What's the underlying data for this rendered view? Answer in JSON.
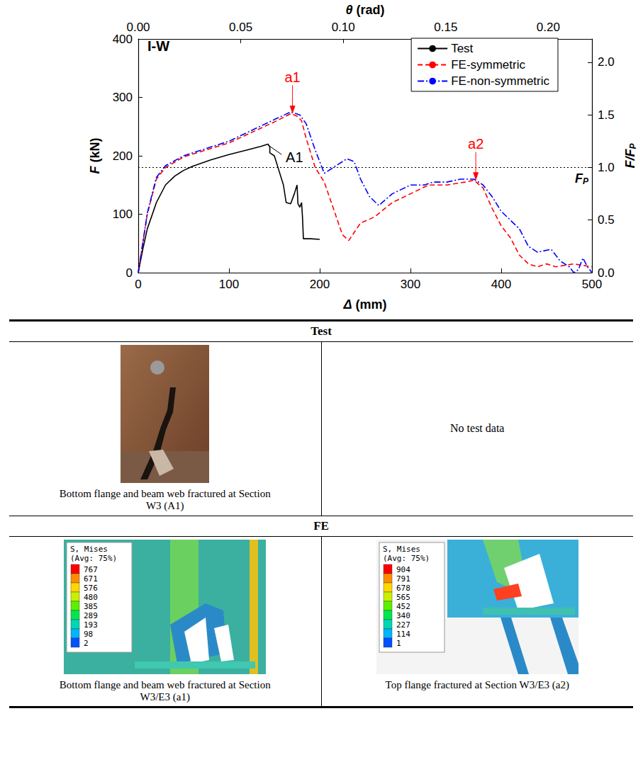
{
  "chart_data": {
    "type": "line",
    "panel_label": "I-W",
    "x_label": "Δ (mm)",
    "y_label": "F (kN)",
    "x2_label": "θ (rad)",
    "y2_label": {
      "text": "F/F",
      "subscript": "P"
    },
    "xlim": [
      0,
      500
    ],
    "xticks": [
      0,
      100,
      200,
      300,
      400,
      500
    ],
    "ylim": [
      0,
      400
    ],
    "yticks": [
      0,
      100,
      200,
      300,
      400
    ],
    "x2lim": [
      0,
      0.2213
    ],
    "x2ticks": [
      {
        "value": 0,
        "label": "0.00"
      },
      0.05,
      {
        "value": 0.1,
        "label": "0.10"
      },
      0.15,
      {
        "value": 0.2,
        "label": "0.20"
      }
    ],
    "y2lim": [
      0,
      2.222
    ],
    "y2ticks": [
      {
        "value": 0,
        "label": "0.0"
      },
      0.5,
      {
        "value": 1,
        "label": "1.0"
      },
      1.5,
      {
        "value": 2,
        "label": "2.0"
      }
    ],
    "grid": false,
    "legend": "upper right",
    "reference_line": {
      "y": 180,
      "label": "F",
      "label_subscript": "P"
    },
    "annotations": [
      {
        "text": "A1",
        "x": 143,
        "y": 218,
        "color": "#000000",
        "marker": "line"
      },
      {
        "text": "a1",
        "x": 170,
        "y": 272,
        "color": "#ff0000",
        "marker": "arrow"
      },
      {
        "text": "a2",
        "x": 372,
        "y": 158,
        "color": "#ff0000",
        "marker": "arrow"
      }
    ],
    "series": [
      {
        "name": "Test",
        "color": "#000000",
        "line_style": "solid",
        "x": [
          0,
          5,
          10,
          20,
          30,
          40,
          50,
          60,
          80,
          100,
          120,
          135,
          143,
          145,
          145,
          150,
          155,
          160,
          163,
          168,
          172,
          175,
          176,
          178,
          180,
          181,
          182,
          190,
          200
        ],
        "values": [
          0,
          40,
          75,
          120,
          150,
          165,
          175,
          182,
          193,
          202,
          210,
          216,
          220,
          215,
          205,
          200,
          175,
          150,
          120,
          118,
          135,
          150,
          118,
          112,
          120,
          95,
          58,
          58,
          57
        ]
      },
      {
        "name": "FE-symmetric",
        "color": "#ff0000",
        "line_style": "dashed",
        "x": [
          0,
          10,
          20,
          30,
          50,
          100,
          150,
          168,
          175,
          180,
          185,
          195,
          205,
          215,
          225,
          232,
          245,
          260,
          280,
          300,
          320,
          340,
          360,
          370,
          380,
          390,
          400,
          410,
          420,
          430,
          440,
          450,
          460,
          480,
          500
        ],
        "values": [
          0,
          100,
          160,
          180,
          198,
          222,
          258,
          272,
          268,
          260,
          230,
          180,
          155,
          110,
          65,
          55,
          85,
          95,
          120,
          135,
          150,
          150,
          155,
          158,
          145,
          110,
          80,
          60,
          30,
          15,
          10,
          15,
          10,
          15,
          10
        ]
      },
      {
        "name": "FE-non-symmetric",
        "color": "#0000ff",
        "line_style": "dashdot",
        "x": [
          0,
          10,
          20,
          30,
          50,
          100,
          150,
          168,
          178,
          185,
          195,
          205,
          215,
          230,
          238,
          245,
          255,
          265,
          280,
          300,
          315,
          325,
          340,
          355,
          370,
          380,
          390,
          400,
          410,
          420,
          430,
          440,
          455,
          465,
          475,
          480,
          485,
          490,
          495,
          500
        ],
        "values": [
          0,
          102,
          163,
          183,
          200,
          225,
          262,
          275,
          270,
          255,
          210,
          170,
          180,
          195,
          190,
          160,
          130,
          115,
          135,
          150,
          150,
          155,
          155,
          160,
          160,
          150,
          130,
          105,
          90,
          75,
          45,
          35,
          40,
          20,
          10,
          0,
          5,
          25,
          10,
          0
        ]
      }
    ]
  },
  "table": {
    "sections": [
      {
        "header": "Test",
        "cells": [
          {
            "caption": "Bottom flange and beam web fractured at Section W3 (A1)"
          },
          {
            "text": "No test data"
          }
        ]
      },
      {
        "header": "FE",
        "cells": [
          {
            "legend_title": "S, Mises",
            "legend_subtitle": "(Avg: 75%)",
            "legend_values": [
              767,
              671,
              576,
              480,
              385,
              289,
              193,
              98,
              2
            ],
            "caption": "Bottom flange and beam web fractured at Section W3/E3 (a1)"
          },
          {
            "legend_title": "S, Mises",
            "legend_subtitle": "(Avg: 75%)",
            "legend_values": [
              904,
              791,
              678,
              565,
              452,
              340,
              227,
              114,
              1
            ],
            "caption": "Top flange fractured at Section W3/E3 (a2)"
          }
        ]
      }
    ]
  }
}
